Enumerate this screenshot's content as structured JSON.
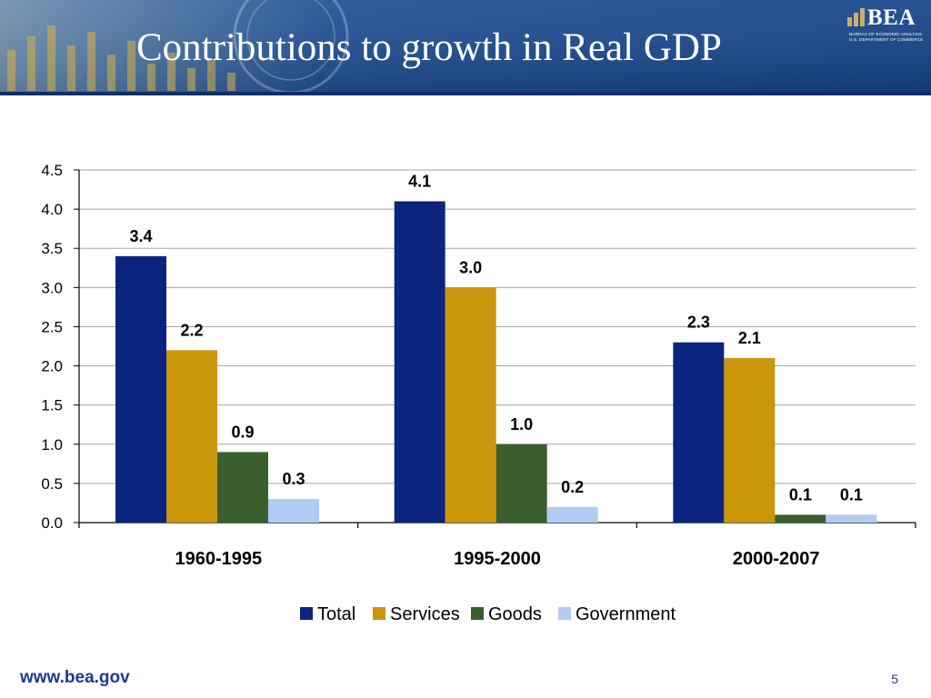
{
  "slide": {
    "title": "Contributions to growth in Real GDP",
    "footer_url": "www.bea.gov",
    "page_number": "5"
  },
  "logo": {
    "text": "BEA",
    "line1": "BUREAU OF ECONOMIC ANALYSIS",
    "line2": "U.S. DEPARTMENT OF COMMERCE"
  },
  "colors": {
    "banner_dark": "#123a7a",
    "banner_light": "#3b72b8",
    "total": "#0b2480",
    "services": "#c9960c",
    "goods": "#3b5e2f",
    "government": "#b2cbf4"
  },
  "chart_data": {
    "type": "bar",
    "categories": [
      "1960-1995",
      "1995-2000",
      "2000-2007"
    ],
    "series": [
      {
        "name": "Total",
        "values": [
          3.4,
          4.1,
          2.3
        ],
        "labels": [
          "3.4",
          "4.1",
          "2.3"
        ]
      },
      {
        "name": "Services",
        "values": [
          2.2,
          3.0,
          2.1
        ],
        "labels": [
          "2.2",
          "3.0",
          "2.1"
        ]
      },
      {
        "name": "Goods",
        "values": [
          0.9,
          1.0,
          0.1
        ],
        "labels": [
          "0.9",
          "1.0",
          "0.1"
        ]
      },
      {
        "name": "Government",
        "values": [
          0.3,
          0.2,
          0.1
        ],
        "labels": [
          "0.3",
          "0.2",
          "0.1"
        ]
      }
    ],
    "ylim": [
      0,
      4.5
    ],
    "yticks": [
      "0.0",
      "0.5",
      "1.0",
      "1.5",
      "2.0",
      "2.5",
      "3.0",
      "3.5",
      "4.0",
      "4.5"
    ],
    "grid": true,
    "legend": "bottom"
  }
}
